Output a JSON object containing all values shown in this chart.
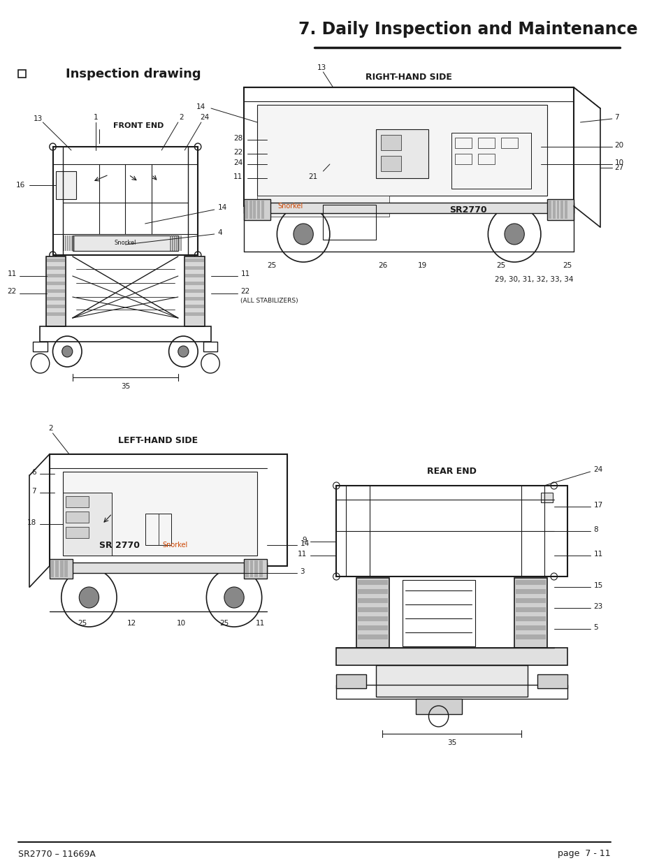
{
  "title": "7. Daily Inspection and Maintenance",
  "subtitle": "Inspection drawing",
  "footer_left": "SR2770 – 11669A",
  "footer_right": "page  7 - 11",
  "bg_color": "#ffffff",
  "line_color": "#1a1a1a",
  "text_color": "#1a1a1a",
  "title_fontsize": 17,
  "subtitle_fontsize": 13,
  "label_fontsize": 8,
  "footer_fontsize": 9
}
